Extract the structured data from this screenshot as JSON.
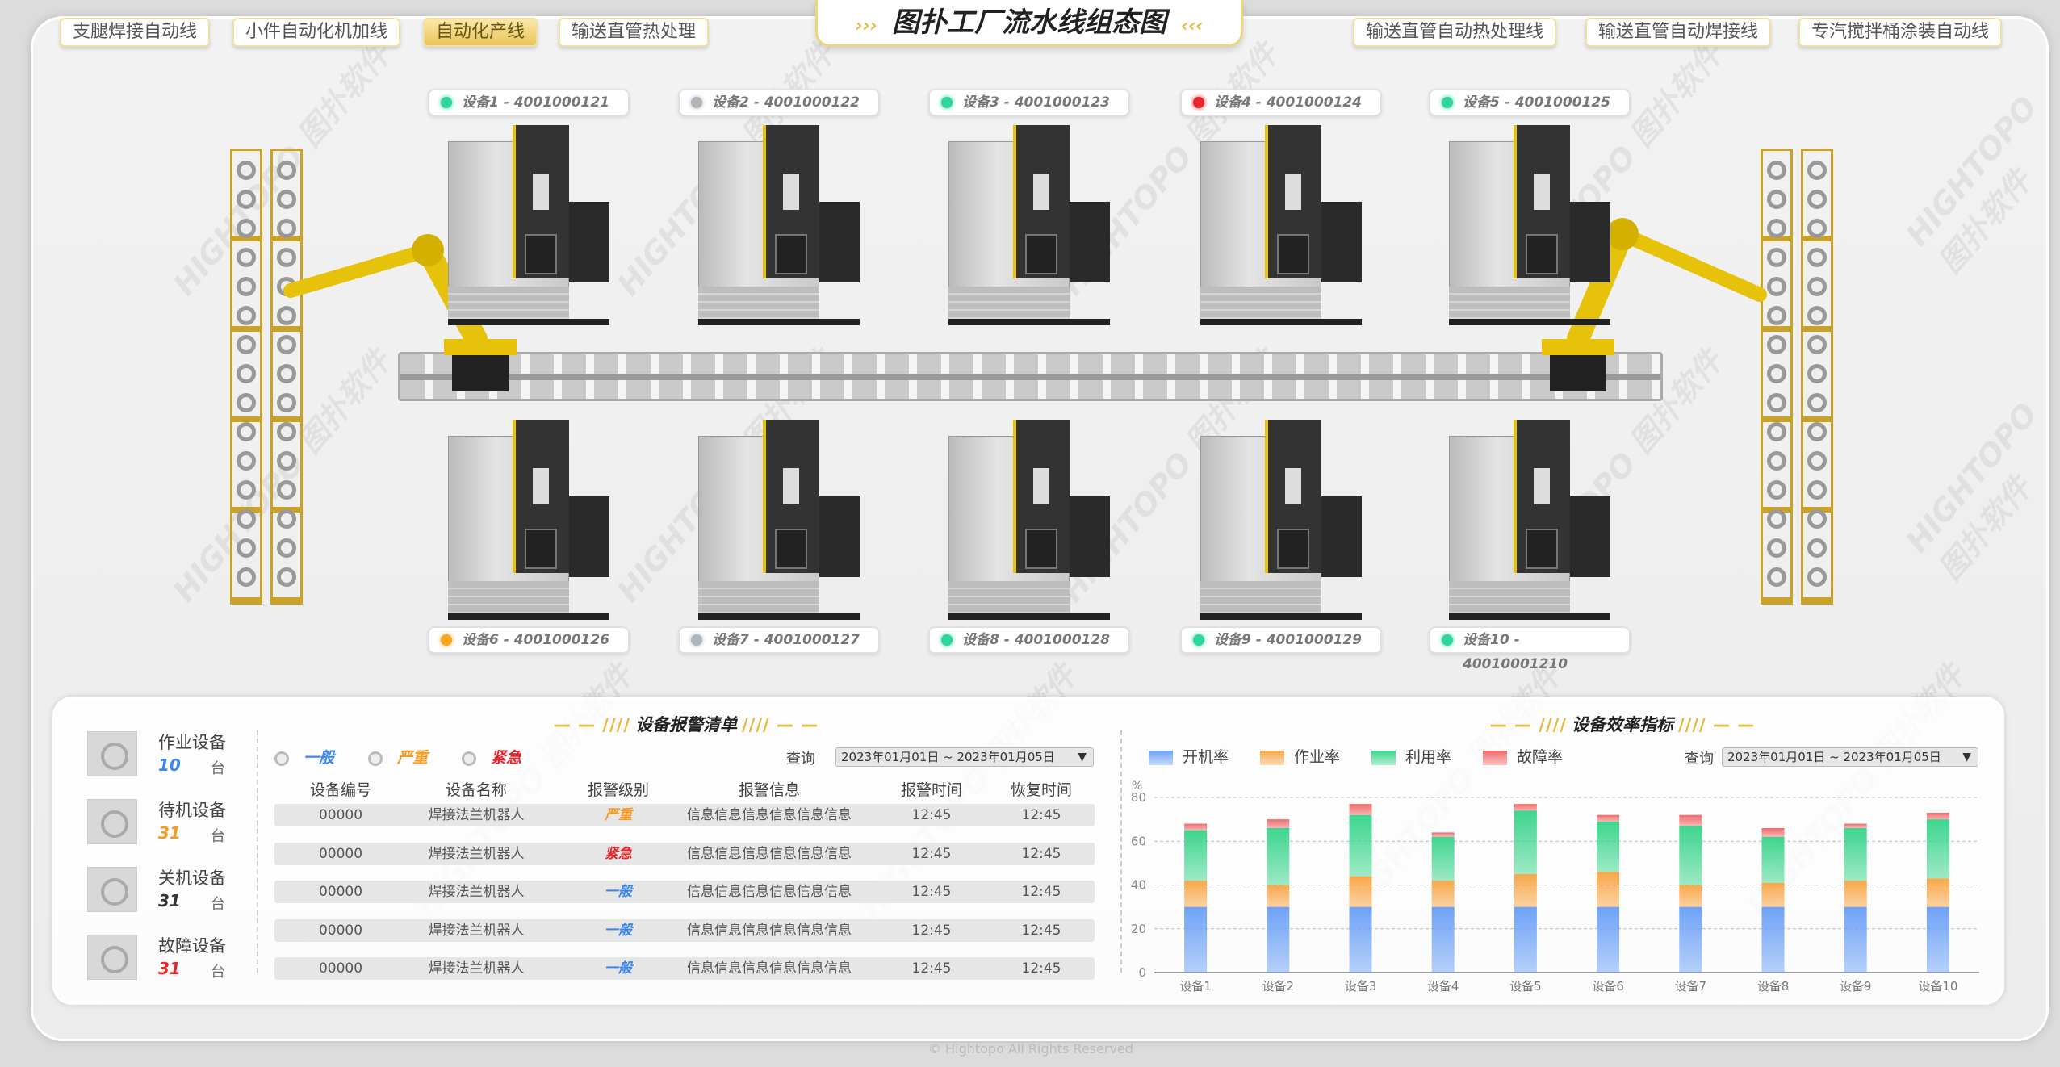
{
  "title": "图扑工厂流水线组态图",
  "tabs_left": [
    {
      "label": "支腿焊接自动线"
    },
    {
      "label": "小件自动化机加线"
    },
    {
      "label": "自动化产线",
      "active": true
    },
    {
      "label": "输送直管热处理"
    }
  ],
  "tabs_right": [
    {
      "label": "输送直管自动热处理线"
    },
    {
      "label": "输送直管自动焊接线"
    },
    {
      "label": "专汽搅拌桶涂装自动线"
    }
  ],
  "devices": [
    {
      "label": "设备1 - 4001000121",
      "status": "green"
    },
    {
      "label": "设备2 - 4001000122",
      "status": "gray"
    },
    {
      "label": "设备3 - 4001000123",
      "status": "green"
    },
    {
      "label": "设备4 - 4001000124",
      "status": "red"
    },
    {
      "label": "设备5 - 4001000125",
      "status": "green"
    },
    {
      "label": "设备6 - 4001000126",
      "status": "orange"
    },
    {
      "label": "设备7 - 4001000127",
      "status": "gray"
    },
    {
      "label": "设备8 - 4001000128",
      "status": "green"
    },
    {
      "label": "设备9 - 4001000129",
      "status": "green"
    },
    {
      "label": "设备10 - 40010001210",
      "status": "green"
    }
  ],
  "status_colors": {
    "green": "#2fd59a",
    "gray": "#b0b6bb",
    "red": "#e8262c",
    "orange": "#f5a623"
  },
  "stats": [
    {
      "label": "作业设备",
      "value": "10",
      "unit": "台",
      "color": "#3d86f0"
    },
    {
      "label": "待机设备",
      "value": "31",
      "unit": "台",
      "color": "#f59a23"
    },
    {
      "label": "关机设备",
      "value": "31",
      "unit": "台",
      "color": "#333333"
    },
    {
      "label": "故障设备",
      "value": "31",
      "unit": "台",
      "color": "#e8262c"
    }
  ],
  "alarm": {
    "title": "设备报警清单",
    "filters": [
      {
        "label": "一般",
        "color": "#3d86f0"
      },
      {
        "label": "严重",
        "color": "#f59a23"
      },
      {
        "label": "紧急",
        "color": "#e8262c"
      }
    ],
    "query_label": "查询",
    "date_range": "2023年01月01日 ~ 2023年01月05日",
    "columns": [
      "设备编号",
      "设备名称",
      "报警级别",
      "报警信息",
      "报警时间",
      "恢复时间"
    ],
    "rows": [
      {
        "id": "00000",
        "name": "焊接法兰机器人",
        "level": "严重",
        "level_color": "#f59a23",
        "info": "信息信息信息信息信息信息",
        "alarm_time": "12:45",
        "recover_time": "12:45"
      },
      {
        "id": "00000",
        "name": "焊接法兰机器人",
        "level": "紧急",
        "level_color": "#e8262c",
        "info": "信息信息信息信息信息信息",
        "alarm_time": "12:45",
        "recover_time": "12:45"
      },
      {
        "id": "00000",
        "name": "焊接法兰机器人",
        "level": "一般",
        "level_color": "#3d86f0",
        "info": "信息信息信息信息信息信息",
        "alarm_time": "12:45",
        "recover_time": "12:45"
      },
      {
        "id": "00000",
        "name": "焊接法兰机器人",
        "level": "一般",
        "level_color": "#3d86f0",
        "info": "信息信息信息信息信息信息",
        "alarm_time": "12:45",
        "recover_time": "12:45"
      },
      {
        "id": "00000",
        "name": "焊接法兰机器人",
        "level": "一般",
        "level_color": "#3d86f0",
        "info": "信息信息信息信息信息信息",
        "alarm_time": "12:45",
        "recover_time": "12:45"
      }
    ]
  },
  "efficiency": {
    "title": "设备效率指标",
    "query_label": "查询",
    "date_range": "2023年01月01日 ~ 2023年01月05日"
  },
  "chart_data": {
    "type": "bar",
    "stacked": true,
    "categories": [
      "设备1",
      "设备2",
      "设备3",
      "设备4",
      "设备5",
      "设备6",
      "设备7",
      "设备8",
      "设备9",
      "设备10"
    ],
    "ylabel": "%",
    "ylim": [
      0,
      80
    ],
    "yticks": [
      0,
      20,
      40,
      60,
      80
    ],
    "grid": true,
    "legend": "top-left",
    "series": [
      {
        "name": "开机率",
        "color": "#6ea2f7",
        "values": [
          30,
          30,
          30,
          30,
          30,
          30,
          30,
          30,
          30,
          30
        ]
      },
      {
        "name": "作业率",
        "color": "#f8a84a",
        "values": [
          12,
          10,
          14,
          12,
          15,
          16,
          10,
          11,
          12,
          13
        ]
      },
      {
        "name": "利用率",
        "color": "#3ed58e",
        "values": [
          23,
          26,
          28,
          20,
          29,
          23,
          27,
          21,
          24,
          27
        ]
      },
      {
        "name": "故障率",
        "color": "#f06b6b",
        "values": [
          3,
          4,
          5,
          2,
          3,
          3,
          5,
          4,
          2,
          3
        ]
      }
    ]
  },
  "footer": "© Hightopo All Rights Reserved",
  "watermark": "HIGHTOPO 图扑软件"
}
